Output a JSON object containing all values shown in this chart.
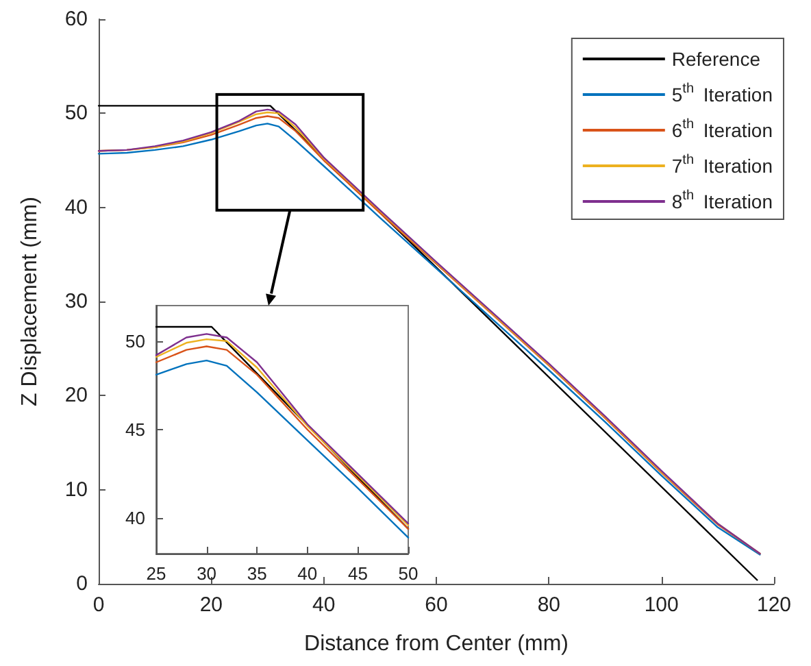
{
  "chart_data": [
    {
      "type": "line",
      "xlabel": "Distance from Center (mm)",
      "ylabel": "Z Displacement (mm)",
      "xlim": [
        0,
        120
      ],
      "xticks": [
        0,
        20,
        40,
        60,
        80,
        100,
        120
      ],
      "ylim": [
        0,
        60
      ],
      "yticks": [
        0,
        10,
        20,
        30,
        40,
        50,
        60
      ],
      "grid": false,
      "legend": "top right",
      "marker": "none",
      "line_style": "solid",
      "series": [
        {
          "name": "Reference",
          "color": "#000000",
          "x": [
            0,
            30.5,
            117
          ],
          "values": [
            50.8,
            50.8,
            0.4
          ]
        },
        {
          "name": "5$^{th}$ Iteration",
          "color": "#0072bd",
          "x": [
            0,
            5,
            10,
            15,
            20,
            25,
            28,
            30,
            32,
            35,
            40,
            50,
            60,
            70,
            80,
            90,
            100,
            110,
            117.5
          ],
          "values": [
            45.7,
            45.8,
            46.1,
            46.5,
            47.2,
            48.1,
            48.7,
            48.9,
            48.6,
            47.1,
            44.4,
            38.9,
            33.5,
            28.1,
            22.7,
            17.2,
            11.5,
            6.0,
            3.1
          ]
        },
        {
          "name": "6$^{th}$ Iteration",
          "color": "#d95319",
          "x": [
            0,
            5,
            10,
            15,
            20,
            25,
            28,
            30,
            32,
            35,
            40,
            50,
            60,
            70,
            80,
            90,
            100,
            110,
            117.5
          ],
          "values": [
            46.0,
            46.1,
            46.4,
            46.9,
            47.7,
            48.8,
            49.5,
            49.7,
            49.5,
            48.1,
            45.0,
            39.4,
            34.0,
            28.6,
            23.2,
            17.6,
            11.8,
            6.3,
            3.2
          ]
        },
        {
          "name": "7$^{th}$ Iteration",
          "color": "#edb120",
          "x": [
            0,
            5,
            10,
            15,
            20,
            25,
            28,
            30,
            32,
            35,
            40,
            50,
            60,
            70,
            80,
            90,
            100,
            110,
            117.5
          ],
          "values": [
            46.0,
            46.1,
            46.4,
            47.0,
            47.9,
            49.1,
            49.9,
            50.1,
            50.0,
            48.5,
            45.2,
            39.6,
            34.1,
            28.7,
            23.3,
            17.7,
            11.9,
            6.4,
            3.2
          ]
        },
        {
          "name": "8$^{th}$ Iteration",
          "color": "#7e2f8e",
          "x": [
            0,
            5,
            10,
            15,
            20,
            25,
            28,
            30,
            32,
            35,
            40,
            50,
            60,
            70,
            80,
            90,
            100,
            110,
            117.5
          ],
          "values": [
            46.0,
            46.1,
            46.5,
            47.1,
            48.0,
            49.2,
            50.2,
            50.4,
            50.2,
            48.8,
            45.3,
            39.7,
            34.2,
            28.8,
            23.4,
            17.8,
            12.0,
            6.4,
            3.2
          ]
        }
      ]
    },
    {
      "type": "line",
      "xlim": [
        25,
        50
      ],
      "xticks": [
        25,
        30,
        35,
        40,
        45,
        50
      ],
      "ylim": [
        38,
        52
      ],
      "yticks": [
        40,
        45,
        50
      ],
      "grid": false,
      "legend": false,
      "marker": "none",
      "line_style": "solid",
      "series": [
        {
          "color": "#000000",
          "x": [
            25,
            30.5,
            50
          ],
          "values": [
            50.8,
            50.8,
            39.4
          ]
        },
        {
          "color": "#0072bd",
          "x": [
            25,
            28,
            30,
            32,
            35,
            40,
            45,
            50
          ],
          "values": [
            48.1,
            48.7,
            48.9,
            48.6,
            47.1,
            44.4,
            41.7,
            38.9
          ]
        },
        {
          "color": "#d95319",
          "x": [
            25,
            28,
            30,
            32,
            35,
            40,
            45,
            50
          ],
          "values": [
            48.8,
            49.5,
            49.7,
            49.5,
            48.1,
            45.0,
            42.2,
            39.4
          ]
        },
        {
          "color": "#edb120",
          "x": [
            25,
            28,
            30,
            32,
            35,
            40,
            45,
            50
          ],
          "values": [
            49.1,
            49.9,
            50.1,
            50.0,
            48.5,
            45.2,
            42.4,
            39.6
          ]
        },
        {
          "color": "#7e2f8e",
          "x": [
            25,
            28,
            30,
            32,
            35,
            40,
            45,
            50
          ],
          "values": [
            49.2,
            50.2,
            50.4,
            50.2,
            48.8,
            45.3,
            42.5,
            39.7
          ]
        }
      ]
    }
  ]
}
